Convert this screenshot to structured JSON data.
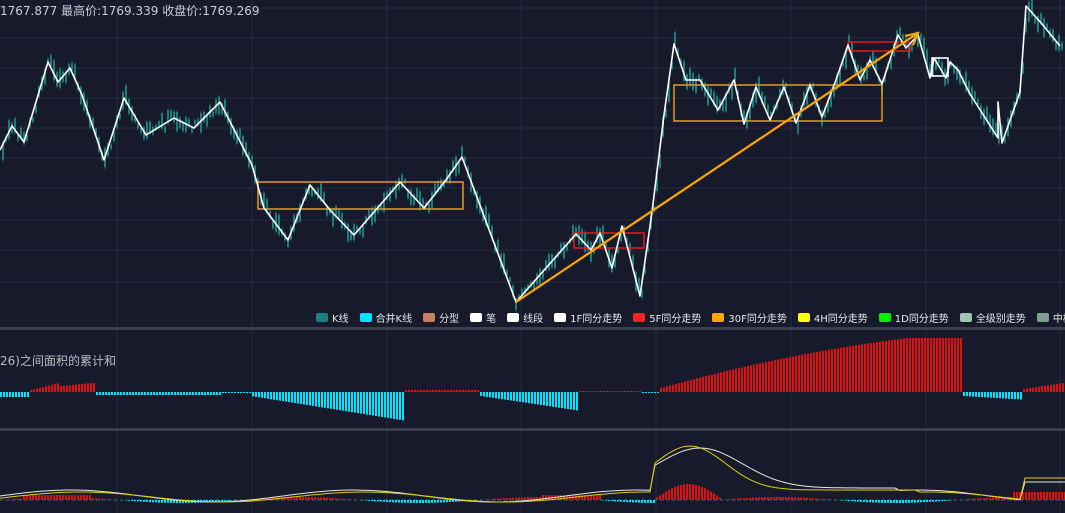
{
  "header": {
    "ohlc_text": "1767.877 最高价:1769.339 收盘价:1769.269"
  },
  "indicator": {
    "title": "26)之间面积的累计和"
  },
  "legend": {
    "items": [
      {
        "label": "K线",
        "color": "#1e7d7d",
        "icon": "legend-swatch-kline"
      },
      {
        "label": "合并K线",
        "color": "#00e5ff",
        "icon": "legend-swatch-merged-kline"
      },
      {
        "label": "分型",
        "color": "#c88060",
        "icon": "legend-swatch-fractal"
      },
      {
        "label": "笔",
        "color": "#ffffff",
        "icon": "legend-swatch-stroke"
      },
      {
        "label": "线段",
        "color": "#ffffff",
        "icon": "legend-swatch-segment"
      },
      {
        "label": "1F同分走势",
        "color": "#ffffff",
        "icon": "legend-swatch-1f"
      },
      {
        "label": "5F同分走势",
        "color": "#ff1f1f",
        "icon": "legend-swatch-5f"
      },
      {
        "label": "30F同分走势",
        "color": "#ffa500",
        "icon": "legend-swatch-30f"
      },
      {
        "label": "4H同分走势",
        "color": "#ffff00",
        "icon": "legend-swatch-4h"
      },
      {
        "label": "1D同分走势",
        "color": "#00ee00",
        "icon": "legend-swatch-1d"
      },
      {
        "label": "全级别走势",
        "color": "#9fc8b0",
        "icon": "legend-swatch-all-levels"
      },
      {
        "label": "中枢",
        "color": "#7fa090",
        "icon": "legend-swatch-pivot"
      }
    ]
  },
  "colors": {
    "background": "#161a2a",
    "grid": "#262b3e",
    "separator": "#3a3f4f",
    "candle": "#1e7d7d",
    "stroke": "#ffffff",
    "trend_line": "#ffa500",
    "zone_30f": "#e89b1a",
    "zone_5f": "#e01b1b",
    "area_positive": "#e01010",
    "area_negative": "#00e5ff",
    "macd_dif": "#e8e8e8",
    "macd_dea": "#e0d000"
  }
}
